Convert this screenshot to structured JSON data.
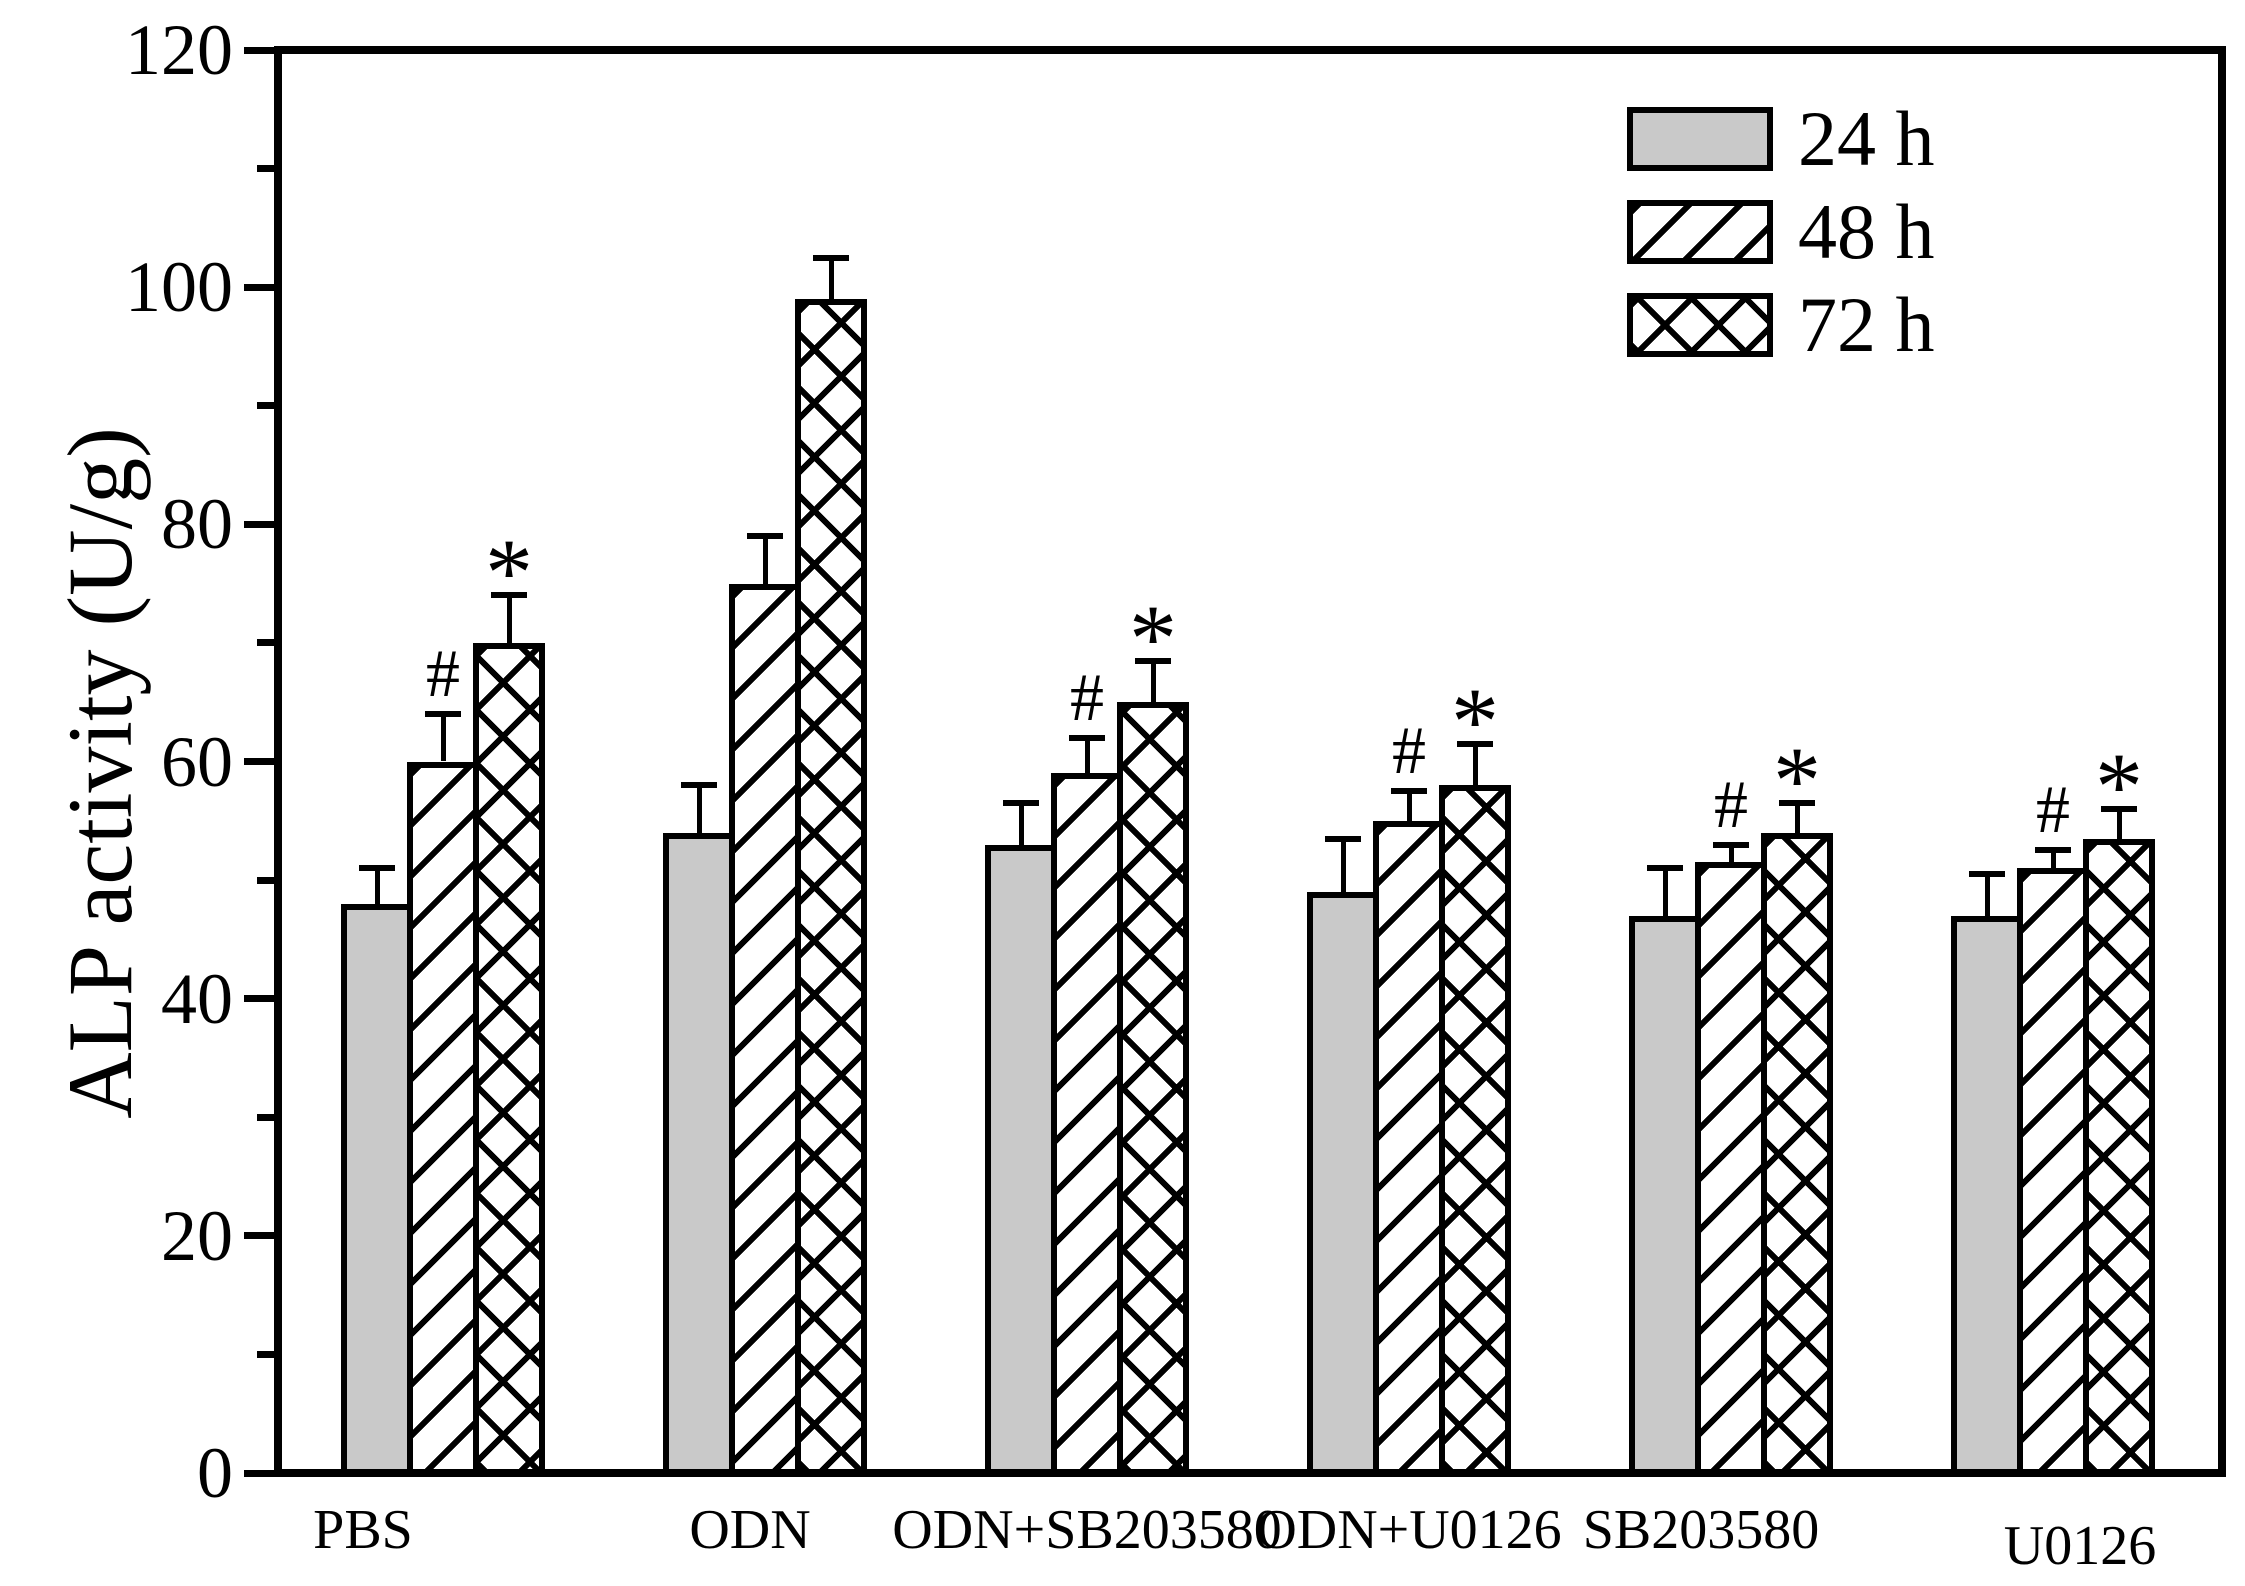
{
  "figure": {
    "background": "#ffffff"
  },
  "chart_data": {
    "type": "bar",
    "title": "",
    "xlabel": "",
    "ylabel": "ALP activity (U/g)",
    "ylim": [
      0,
      120
    ],
    "y_major_ticks": [
      0,
      20,
      40,
      60,
      80,
      100,
      120
    ],
    "y_minor_ticks": [
      10,
      30,
      50,
      70,
      90,
      110
    ],
    "grid": false,
    "legend_position": "top-right-inside",
    "categories": [
      "PBS",
      "ODN",
      "ODN+SB203580",
      "ODN+U0126",
      "SB203580",
      "U0126"
    ],
    "series": [
      {
        "name": "24 h",
        "pattern": "solid-gray",
        "values": [
          48,
          54,
          53,
          49,
          47,
          47
        ],
        "errors": [
          3,
          4,
          3.5,
          4.5,
          4,
          3.5
        ],
        "annotations": [
          "",
          "",
          "",
          "",
          "",
          ""
        ]
      },
      {
        "name": "48 h",
        "pattern": "diagonal-hatch",
        "values": [
          60,
          75,
          59,
          55,
          51.5,
          51
        ],
        "errors": [
          4,
          4,
          3,
          2.5,
          1.5,
          1.5
        ],
        "annotations": [
          "#",
          "",
          "#",
          "#",
          "#",
          "#"
        ]
      },
      {
        "name": "72 h",
        "pattern": "cross-hatch",
        "values": [
          70,
          99,
          65,
          58,
          54,
          53.5
        ],
        "errors": [
          4,
          3.5,
          3.5,
          3.5,
          2.5,
          2.5
        ],
        "annotations": [
          "*",
          "",
          "*",
          "*",
          "*",
          "*"
        ]
      }
    ],
    "annotation_symbols": {
      "hash": "#",
      "star": "*"
    },
    "colors": {
      "ink": "#000000",
      "bar_gray": "#c9c9c9",
      "background": "#ffffff"
    }
  }
}
